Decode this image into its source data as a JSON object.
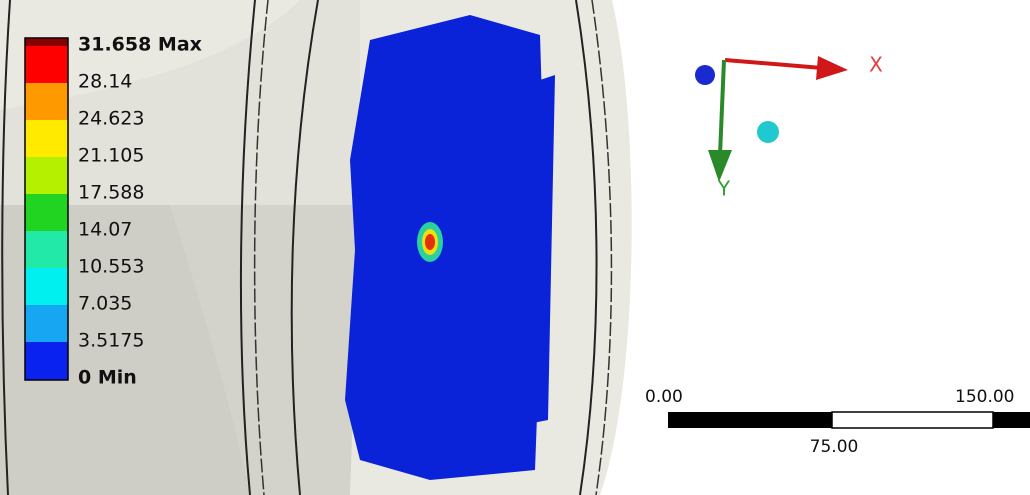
{
  "legend": {
    "labels": [
      "31.658 Max",
      "28.14",
      "24.623",
      "21.105",
      "17.588",
      "14.07",
      "10.553",
      "7.035",
      "3.5175",
      "0 Min"
    ]
  },
  "triad": {
    "x_label": "X",
    "y_label": "Y"
  },
  "scale_bar": {
    "start": "0.00",
    "end": "150.00",
    "middle": "75.00"
  }
}
